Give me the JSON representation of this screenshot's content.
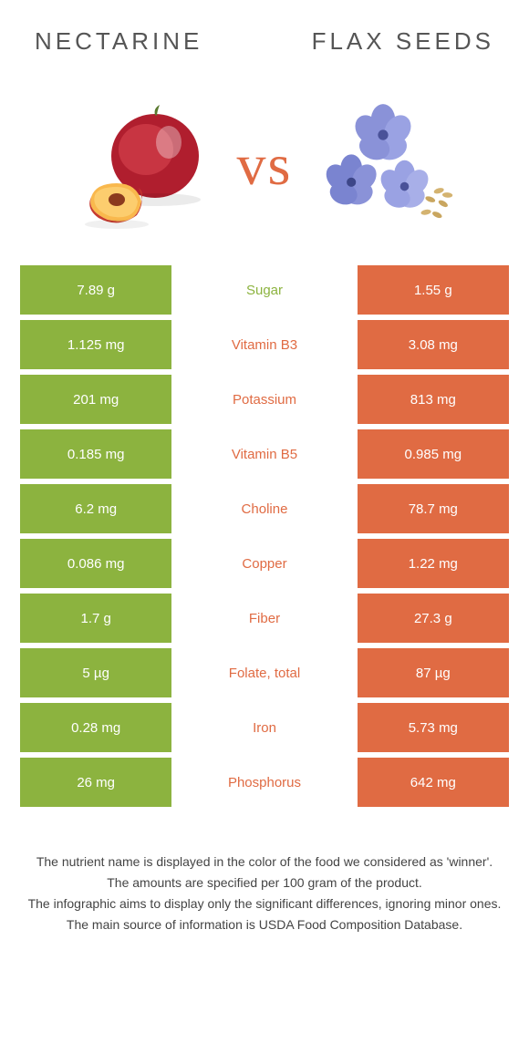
{
  "header": {
    "left_title": "Nectarine",
    "right_title": "Flax seeds"
  },
  "vs_label": "vs",
  "colors": {
    "left_cell": "#8cb33f",
    "right_cell": "#e06b43",
    "vs_text": "#e06b43",
    "mid_text_left_win": "#8cb33f",
    "mid_text_right_win": "#e06b43"
  },
  "rows": [
    {
      "left": "7.89 g",
      "mid": "Sugar",
      "right": "1.55 g",
      "winner": "left"
    },
    {
      "left": "1.125 mg",
      "mid": "Vitamin B3",
      "right": "3.08 mg",
      "winner": "right"
    },
    {
      "left": "201 mg",
      "mid": "Potassium",
      "right": "813 mg",
      "winner": "right"
    },
    {
      "left": "0.185 mg",
      "mid": "Vitamin B5",
      "right": "0.985 mg",
      "winner": "right"
    },
    {
      "left": "6.2 mg",
      "mid": "Choline",
      "right": "78.7 mg",
      "winner": "right"
    },
    {
      "left": "0.086 mg",
      "mid": "Copper",
      "right": "1.22 mg",
      "winner": "right"
    },
    {
      "left": "1.7 g",
      "mid": "Fiber",
      "right": "27.3 g",
      "winner": "right"
    },
    {
      "left": "5 µg",
      "mid": "Folate, total",
      "right": "87 µg",
      "winner": "right"
    },
    {
      "left": "0.28 mg",
      "mid": "Iron",
      "right": "5.73 mg",
      "winner": "right"
    },
    {
      "left": "26 mg",
      "mid": "Phosphorus",
      "right": "642 mg",
      "winner": "right"
    }
  ],
  "footer": {
    "line1": "The nutrient name is displayed in the color of the food we considered as 'winner'.",
    "line2": "The amounts are specified per 100 gram of the product.",
    "line3": "The infographic aims to display only the significant differences, ignoring minor ones.",
    "line4": "The main source of information is USDA Food Composition Database."
  }
}
